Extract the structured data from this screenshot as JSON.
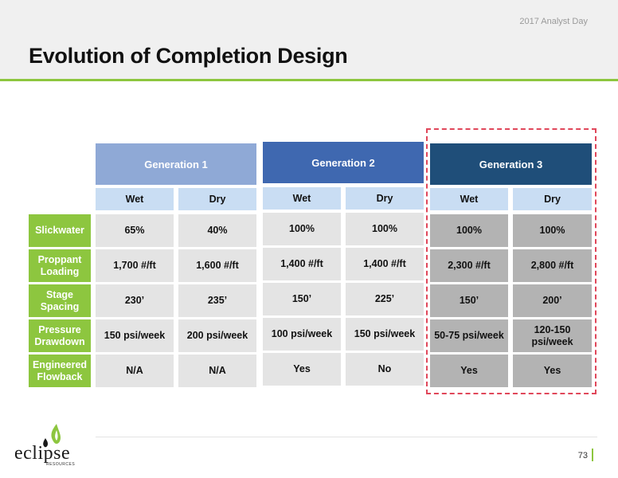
{
  "header": {
    "event": "2017 Analyst Day",
    "title": "Evolution of Completion Design"
  },
  "table": {
    "generations": [
      "Generation 1",
      "Generation 2",
      "Generation 3"
    ],
    "subheaders": [
      "Wet",
      "Dry",
      "Wet",
      "Dry",
      "Wet",
      "Dry"
    ],
    "rows": [
      {
        "label": "Slickwater",
        "values": [
          "65%",
          "40%",
          "100%",
          "100%",
          "100%",
          "100%"
        ]
      },
      {
        "label": "Proppant Loading",
        "values": [
          "1,700 #/ft",
          "1,600 #/ft",
          "1,400 #/ft",
          "1,400 #/ft",
          "2,300 #/ft",
          "2,800 #/ft"
        ]
      },
      {
        "label": "Stage Spacing",
        "values": [
          "230’",
          "235’",
          "150’",
          "225’",
          "150’",
          "200’"
        ]
      },
      {
        "label": "Pressure Drawdown",
        "values": [
          "150 psi/week",
          "200 psi/week",
          "100 psi/week",
          "150 psi/week",
          "50-75 psi/week",
          "120-150 psi/week"
        ]
      },
      {
        "label": "Engineered Flowback",
        "values": [
          "N/A",
          "N/A",
          "Yes",
          "No",
          "Yes",
          "Yes"
        ]
      }
    ]
  },
  "footer": {
    "page": "73",
    "logo_text": "eclipse",
    "logo_sub": "RESOURCES"
  },
  "colors": {
    "accent_green": "#8dc63f",
    "gen1": "#8fa9d6",
    "gen2": "#3f68b0",
    "gen3": "#1f4e79",
    "highlight_dash": "#e0475a"
  }
}
